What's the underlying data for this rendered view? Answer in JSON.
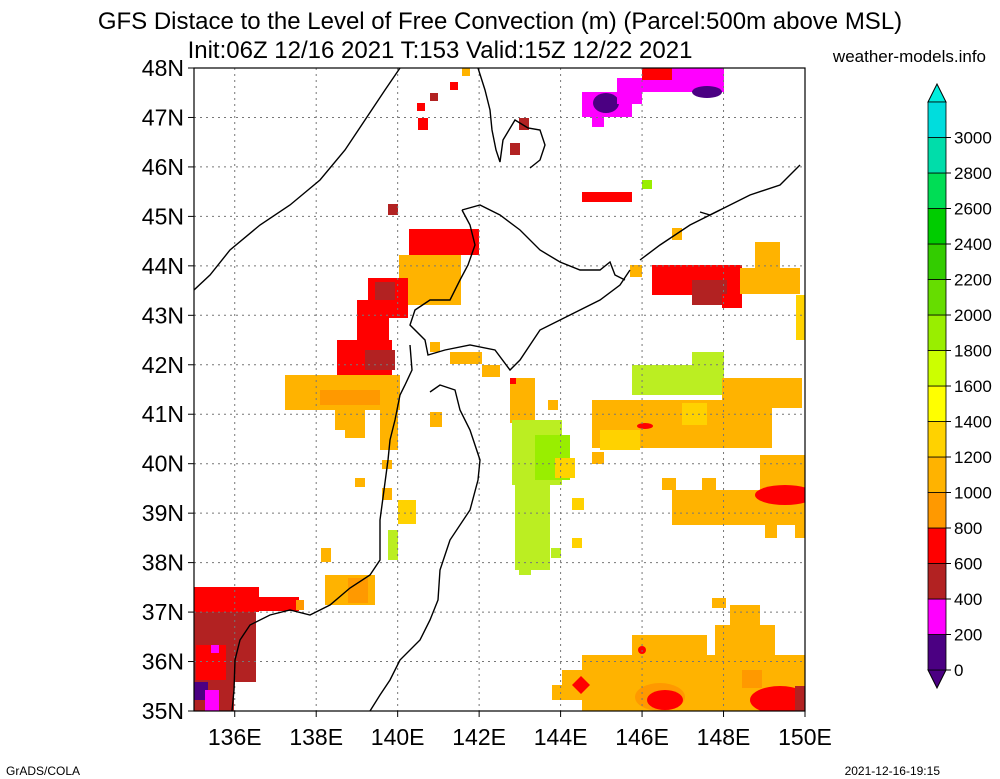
{
  "title_line1": "GFS Distace to the Level of Free Convection (m) (Parcel:500m above MSL)",
  "title_line2": "Init:06Z 12/16 2021 T:153 Valid:15Z 12/22 2021",
  "site": "weather-models.info",
  "credit": "GrADS/COLA",
  "timestamp": "2021-12-16-19:15",
  "map": {
    "lon_range": [
      135,
      150
    ],
    "lat_range": [
      35,
      48
    ],
    "lat_labels": [
      "35N",
      "36N",
      "37N",
      "38N",
      "39N",
      "40N",
      "41N",
      "42N",
      "43N",
      "44N",
      "45N",
      "46N",
      "47N",
      "48N"
    ],
    "lon_labels": [
      "136E",
      "138E",
      "140E",
      "142E",
      "144E",
      "146E",
      "148E",
      "150E"
    ],
    "lon_ticks": [
      136,
      138,
      140,
      142,
      144,
      146,
      148,
      150
    ]
  },
  "colorbar": {
    "levels": [
      "0",
      "200",
      "400",
      "600",
      "800",
      "1000",
      "1200",
      "1400",
      "1600",
      "1800",
      "2000",
      "2200",
      "2400",
      "2600",
      "2800",
      "3000"
    ],
    "colors": [
      "#4b0082",
      "#ff00ff",
      "#b22222",
      "#ff0000",
      "#ff9900",
      "#ffb300",
      "#ffd200",
      "#ffff00",
      "#ccff00",
      "#99ee00",
      "#66dd00",
      "#33cc00",
      "#00cc00",
      "#00dd55",
      "#00ddaa",
      "#00dddd"
    ],
    "bottom_tip_color": "#4b0082",
    "top_tip_color": "#00eedd"
  },
  "colors": {
    "purple": "#4b0082",
    "magenta": "#ff00ff",
    "brown": "#b22222",
    "red": "#ff0000",
    "orange": "#ff9900",
    "amber": "#ffb300",
    "lime": "#bbee22",
    "green": "#99ee00"
  }
}
